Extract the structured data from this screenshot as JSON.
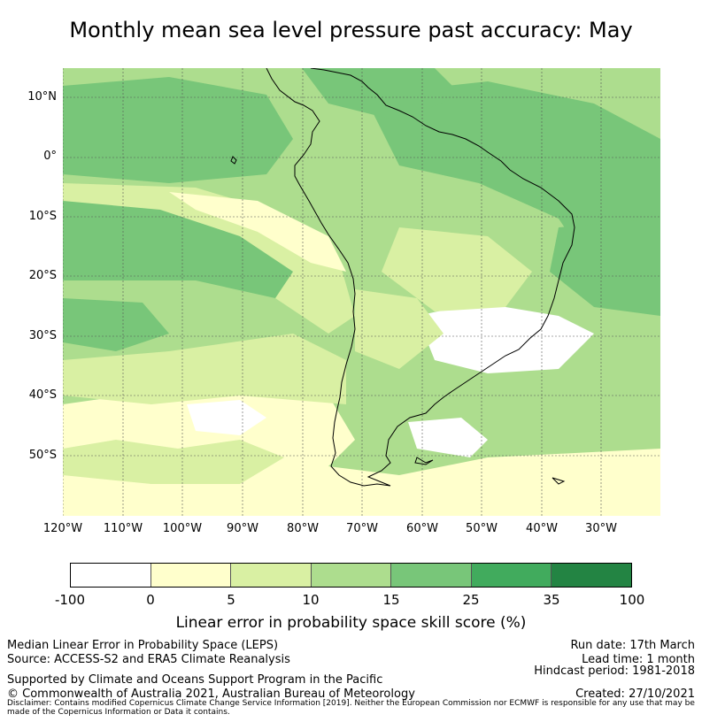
{
  "title": "Monthly mean sea level pressure past accuracy: May",
  "map": {
    "lat_labels": [
      "10°N",
      "0°",
      "10°S",
      "20°S",
      "30°S",
      "40°S",
      "50°S"
    ],
    "lon_labels": [
      "120°W",
      "110°W",
      "100°W",
      "90°W",
      "80°W",
      "70°W",
      "60°W",
      "50°W",
      "40°W",
      "30°W"
    ]
  },
  "colorbar": {
    "colors": [
      "#ffffff",
      "#ffffcc",
      "#d9f0a3",
      "#addd8e",
      "#78c679",
      "#41ab5d",
      "#238443"
    ],
    "ticks": [
      "-100",
      "0",
      "5",
      "10",
      "15",
      "25",
      "35",
      "100"
    ],
    "label": "Linear error in probability space skill score (%)"
  },
  "footer": {
    "left_line1": "Median Linear Error in Probability Space (LEPS)",
    "left_line2": "Source: ACCESS-S2 and ERA5 Climate Reanalysis",
    "left_line3": "Supported by Climate and Oceans Support Program in the Pacific",
    "left_line4": "© Commonwealth of Australia 2021, Australian Bureau of Meteorology",
    "run_date": "Run date: 17th March",
    "lead_time": "Lead time: 1 month",
    "hindcast": "Hindcast period: 1981-2018",
    "created": "Created: 27/10/2021",
    "disclaimer": "Disclaimer: Contains modified Copernicus Climate Change Service Information [2019]. Neither the European Commission nor ECMWF is responsible for any use that may be made of the Copernicus Information or Data it contains."
  }
}
